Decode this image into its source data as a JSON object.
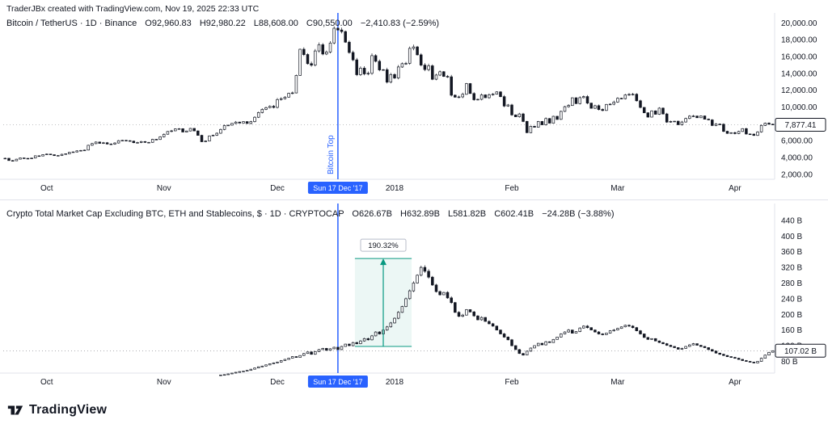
{
  "attribution": {
    "text": "TraderJBx created with TradingView.com, Nov 19, 2025 22:33 UTC"
  },
  "panes": [
    {
      "legend": {
        "symbol": "Bitcoin / TetherUS · 1D · Binance",
        "o": "O92,960.83",
        "h": "H92,980.22",
        "l": "L88,608.00",
        "c": "C90,550.00",
        "change": "−2,410.83 (−2.59%)"
      }
    },
    {
      "legend": {
        "symbol": "Crypto Total Market Cap Excluding BTC, ETH and Stablecoins, $ · 1D · CRYPTOCAP",
        "o": "O626.67B",
        "h": "H632.89B",
        "l": "L581.82B",
        "c": "C602.41B",
        "change": "−24.28B (−3.88%)"
      }
    }
  ],
  "footer": {
    "brand": "TradingView"
  },
  "colors": {
    "accent_blue": "#2962ff",
    "measure_green": "#089981",
    "candle_dark": "#131722",
    "axis_gray": "#e0e3eb"
  },
  "chart_data": [
    {
      "type": "candlestick",
      "title": "Bitcoin / TetherUS",
      "interval": "1D",
      "exchange": "Binance",
      "dates_start": "2017-09-20",
      "total_points": 204,
      "ylim": [
        1400,
        20600
      ],
      "yticks": [
        2000,
        4000,
        6000,
        8000,
        10000,
        12000,
        14000,
        16000,
        18000,
        20000
      ],
      "ytick_format": "number-2dp",
      "last_price": 7877.41,
      "last_price_label": "7,877.41",
      "x_month_labels": [
        {
          "label": "Oct",
          "index": 11
        },
        {
          "label": "Nov",
          "index": 42
        },
        {
          "label": "Dec",
          "index": 72
        },
        {
          "label": "2018",
          "index": 103
        },
        {
          "label": "Feb",
          "index": 134
        },
        {
          "label": "Mar",
          "index": 162
        },
        {
          "label": "Apr",
          "index": 193
        }
      ],
      "event_line": {
        "index": 88,
        "rotated_label": "Bitcoin Top",
        "axis_label": "Sun 17 Dec '17",
        "color": "#2962ff"
      },
      "closes": [
        3900,
        3630,
        3600,
        3790,
        3930,
        3890,
        3870,
        3920,
        4190,
        4170,
        4340,
        4400,
        4320,
        4210,
        4230,
        4370,
        4430,
        4610,
        4650,
        4780,
        4830,
        4870,
        5440,
        5640,
        5830,
        5680,
        5740,
        5600,
        5590,
        5710,
        5990,
        6030,
        5990,
        5930,
        5750,
        5770,
        5880,
        5780,
        5790,
        6150,
        6130,
        6450,
        6750,
        7080,
        7160,
        7390,
        7410,
        7020,
        7140,
        7450,
        7150,
        6620,
        5860,
        5950,
        6560,
        6640,
        6870,
        7320,
        7780,
        7830,
        8040,
        8200,
        8080,
        8250,
        8030,
        8250,
        8770,
        9330,
        9710,
        9920,
        10080,
        9950,
        10880,
        10980,
        11160,
        11620,
        11670,
        13750,
        16860,
        16230,
        15150,
        14970,
        16650,
        17390,
        16290,
        16530,
        17600,
        19350,
        19150,
        18960,
        17700,
        16470,
        15600,
        13830,
        14610,
        13930,
        14000,
        16100,
        15430,
        14400,
        14430,
        12950,
        13850,
        13440,
        14750,
        15150,
        15180,
        16960,
        17130,
        16190,
        14970,
        14440,
        14890,
        13290,
        13790,
        14190,
        13630,
        13580,
        11390,
        11160,
        11190,
        11500,
        12780,
        11600,
        10860,
        10900,
        11430,
        11090,
        11440,
        11530,
        11790,
        11220,
        10110,
        10230,
        9050,
        8830,
        9170,
        8280,
        6940,
        7700,
        7590,
        8270,
        7880,
        8620,
        8070,
        8890,
        8520,
        9470,
        10030,
        10170,
        11090,
        10400,
        11110,
        11230,
        10450,
        9840,
        10150,
        9700,
        9580,
        10300,
        10330,
        10580,
        11030,
        10980,
        11430,
        11490,
        11510,
        10730,
        9940,
        9300,
        8790,
        9530,
        9130,
        9860,
        9170,
        8200,
        8270,
        8300,
        7890,
        8210,
        8630,
        8910,
        8920,
        8720,
        8930,
        8550,
        8460,
        7800,
        7960,
        7940,
        7100,
        6850,
        6940,
        6830,
        7080,
        7420,
        6790,
        6770,
        6620,
        7030,
        7800,
        8070,
        7950,
        7877
      ]
    },
    {
      "type": "candlestick",
      "title": "Crypto Total Market Cap Excluding BTC, ETH and Stablecoins, $",
      "interval": "1D",
      "exchange": "CRYPTOCAP",
      "dates_start": "2017-09-20",
      "total_points": 204,
      "series_start_index": 57,
      "ylim": [
        50,
        450
      ],
      "yticks": [
        80,
        120,
        160,
        200,
        240,
        280,
        320,
        360,
        400,
        440
      ],
      "ytick_format": "billions",
      "last_price": 107.02,
      "last_price_label": "107.02 B",
      "x_month_labels": [
        {
          "label": "Oct",
          "index": 11
        },
        {
          "label": "Nov",
          "index": 42
        },
        {
          "label": "Dec",
          "index": 72
        },
        {
          "label": "2018",
          "index": 103
        },
        {
          "label": "Feb",
          "index": 134
        },
        {
          "label": "Mar",
          "index": 162
        },
        {
          "label": "Apr",
          "index": 193
        }
      ],
      "event_line": {
        "index": 88,
        "axis_label": "Sun 17 Dec '17",
        "color": "#2962ff"
      },
      "measurement": {
        "start_index": 93,
        "end_index": 107,
        "from_value": 118,
        "to_value": 342.6,
        "label": "190.32%",
        "color": "#089981"
      },
      "closes": [
        45,
        46,
        48,
        50,
        52,
        54,
        55,
        57,
        60,
        63,
        66,
        68,
        71,
        74,
        76,
        78,
        82,
        85,
        88,
        92,
        90,
        95,
        100,
        104,
        98,
        105,
        110,
        113,
        108,
        112,
        116,
        110,
        118,
        124,
        120,
        128,
        125,
        132,
        138,
        135,
        145,
        155,
        150,
        160,
        168,
        178,
        190,
        205,
        220,
        240,
        260,
        280,
        300,
        320,
        310,
        295,
        275,
        258,
        250,
        256,
        242,
        230,
        205,
        195,
        198,
        212,
        206,
        196,
        186,
        192,
        182,
        176,
        170,
        160,
        150,
        142,
        135,
        120,
        110,
        100,
        96,
        106,
        114,
        120,
        126,
        122,
        130,
        128,
        136,
        142,
        150,
        155,
        160,
        152,
        156,
        165,
        170,
        166,
        160,
        155,
        150,
        148,
        152,
        158,
        160,
        164,
        168,
        172,
        170,
        166,
        158,
        150,
        141,
        136,
        138,
        132,
        128,
        125,
        121,
        118,
        115,
        111,
        113,
        118,
        122,
        125,
        121,
        118,
        115,
        110,
        106,
        101,
        98,
        95,
        92,
        90,
        88,
        85,
        82,
        80,
        78,
        76,
        80,
        88,
        96,
        103,
        107.02
      ]
    }
  ]
}
